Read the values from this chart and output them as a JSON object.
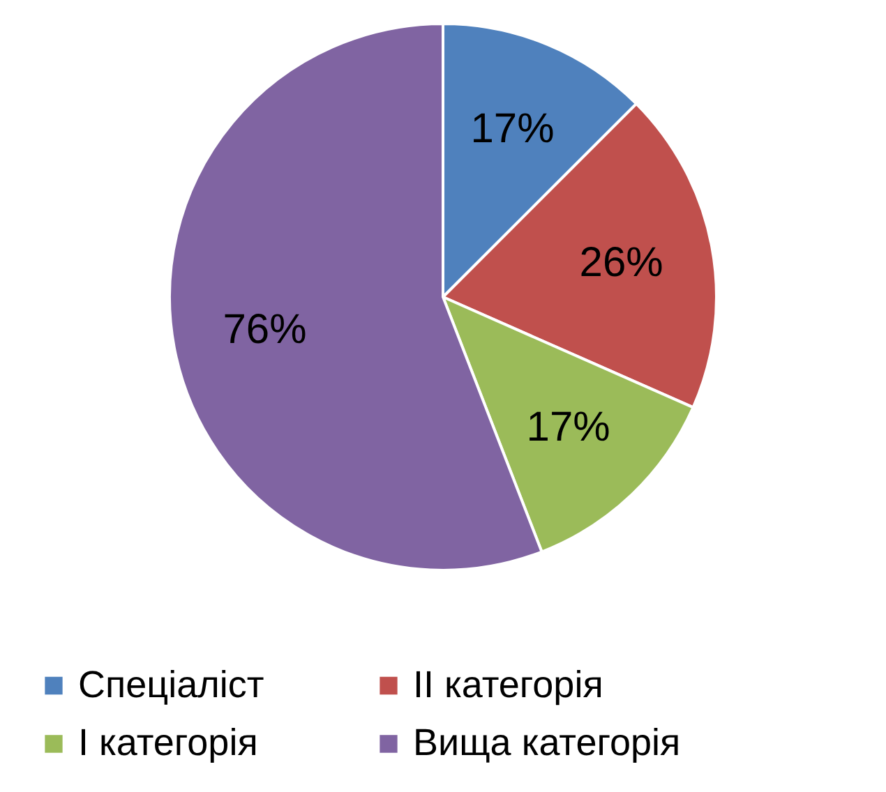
{
  "chart_data": {
    "type": "pie",
    "categories": [
      "Спеціаліст",
      "II категорія",
      "I категорія",
      "Вища категорія"
    ],
    "values": [
      17,
      26,
      17,
      76
    ],
    "value_labels": [
      "17%",
      "26%",
      "17%",
      "76%"
    ],
    "colors": [
      "#4f81bd",
      "#c0504d",
      "#9bbb59",
      "#8064a2"
    ],
    "legend": "bottom"
  }
}
